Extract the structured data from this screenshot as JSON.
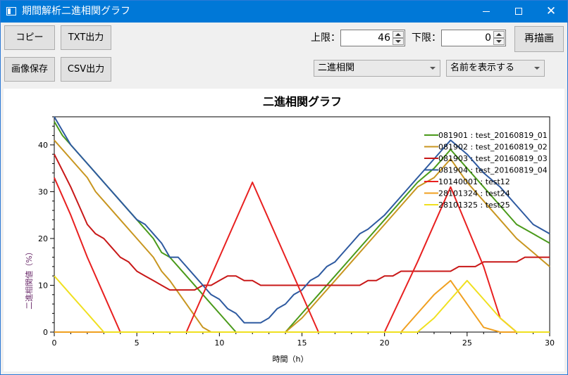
{
  "window": {
    "title": "期間解析二進相関グラフ",
    "minimize_glyph": "",
    "close_glyph": "✕"
  },
  "toolbar": {
    "copy_label": "コピー",
    "txt_label": "TXT出力",
    "image_save_label": "画像保存",
    "csv_label": "CSV出力",
    "upper_label": "上限：",
    "upper_value": "46",
    "lower_label": "下限：",
    "lower_value": "0",
    "redraw_label": "再描画",
    "mode_selected": "二進相関",
    "name_selected": "名前を表示する"
  },
  "chart_data": {
    "type": "line",
    "title": "二進相関グラフ",
    "xlabel": "時間（h）",
    "ylabel": "二進相関値（%）",
    "xlim": [
      0,
      30
    ],
    "ylim": [
      0,
      46
    ],
    "xticks": [
      0,
      5,
      10,
      15,
      20,
      25,
      30
    ],
    "yticks": [
      0,
      10,
      20,
      30,
      40
    ],
    "legend_position": "top-right",
    "series": [
      {
        "name": "081901 : test_20160819_01",
        "color": "#4a9a1a",
        "x": [
          0,
          0.5,
          1,
          2,
          3,
          4,
          5,
          6,
          6.5,
          7,
          8,
          9,
          10,
          11,
          11.5,
          12,
          13,
          14,
          15,
          16,
          17,
          18,
          19,
          20,
          21,
          22,
          23,
          24,
          25,
          26,
          27,
          28,
          29,
          30
        ],
        "y": [
          45,
          42,
          40,
          36,
          32,
          28,
          24,
          20,
          17,
          16,
          12,
          8,
          4,
          0,
          0,
          0,
          0,
          0,
          4,
          8,
          12,
          16,
          20,
          24,
          28,
          32,
          35,
          39,
          35,
          31,
          27,
          23,
          21,
          19
        ]
      },
      {
        "name": "081902 : test_20160819_02",
        "color": "#c89620",
        "x": [
          0,
          1,
          2,
          2.5,
          3,
          4,
          5,
          6,
          6.5,
          7,
          8,
          9,
          9.5,
          10,
          11,
          12,
          13,
          14,
          15,
          16,
          17,
          18,
          19,
          20,
          21,
          22,
          23,
          24,
          25,
          26,
          27,
          28,
          29,
          30
        ],
        "y": [
          41,
          37,
          33,
          30,
          28,
          24,
          20,
          16,
          13,
          11,
          6,
          1,
          0,
          0,
          0,
          0,
          0,
          0,
          3,
          7,
          11,
          15,
          19,
          23,
          27,
          31,
          33,
          37,
          32,
          28,
          24,
          20,
          17,
          14
        ]
      },
      {
        "name": "081903 : test_20160819_03",
        "color": "#c81818",
        "x": [
          0,
          1,
          1.5,
          2,
          2.5,
          3,
          3.5,
          4,
          4.5,
          5,
          5.5,
          6,
          6.5,
          7,
          7.5,
          8,
          8.5,
          9,
          9.5,
          10,
          10.5,
          11,
          11.5,
          12,
          12.5,
          13,
          14,
          15,
          16,
          17,
          18,
          18.5,
          19,
          19.5,
          20,
          20.5,
          21,
          22,
          23,
          24,
          24.5,
          25,
          25.5,
          26,
          27,
          28,
          28.5,
          29,
          30
        ],
        "y": [
          38,
          31,
          27,
          23,
          21,
          20,
          18,
          16,
          15,
          13,
          12,
          11,
          10,
          9,
          9,
          9,
          9,
          10,
          10,
          11,
          12,
          12,
          11,
          11,
          10,
          10,
          10,
          10,
          10,
          10,
          10,
          10,
          11,
          11,
          12,
          12,
          13,
          13,
          13,
          13,
          14,
          14,
          14,
          15,
          15,
          15,
          16,
          16,
          16
        ]
      },
      {
        "name": "081904 : test_20160819_04",
        "color": "#2e5aa0",
        "x": [
          0,
          0.5,
          1,
          2,
          3,
          4,
          4.5,
          5,
          5.5,
          6,
          6.5,
          7,
          7.5,
          8,
          8.5,
          9,
          9.5,
          10,
          10.5,
          11,
          11.5,
          12,
          12.5,
          13,
          13.5,
          14,
          14.5,
          15,
          15.5,
          16,
          16.5,
          17,
          17.5,
          18,
          18.5,
          19,
          20,
          21,
          22,
          23,
          24,
          25,
          26,
          27,
          28,
          29,
          30
        ],
        "y": [
          46,
          43,
          40,
          36,
          32,
          28,
          26,
          24,
          23,
          21,
          19,
          16,
          16,
          14,
          12,
          10,
          8,
          7,
          5,
          4,
          2,
          2,
          2,
          3,
          5,
          6,
          8,
          9,
          11,
          12,
          14,
          15,
          17,
          19,
          21,
          22,
          25,
          29,
          33,
          37,
          41,
          38,
          34,
          31,
          27,
          23,
          21
        ]
      },
      {
        "name": "10140001 : test12",
        "color": "#e82020",
        "x": [
          0,
          1,
          2,
          3,
          4,
          5,
          6,
          7,
          8,
          10,
          12,
          14,
          16,
          17,
          18,
          19,
          20,
          22,
          24,
          26,
          27,
          28,
          29,
          30
        ],
        "y": [
          33,
          25,
          16,
          8,
          0,
          0,
          0,
          0,
          0,
          16,
          32,
          16,
          0,
          0,
          0,
          0,
          0,
          15,
          31,
          14,
          3,
          0,
          0,
          0
        ],
        "x_note": ""
      },
      {
        "name": "28101324 : test24",
        "color": "#f0a020",
        "x": [
          0,
          20,
          21,
          22,
          23,
          24,
          25,
          26,
          27,
          30
        ],
        "y": [
          0,
          0,
          0,
          4,
          8,
          11,
          6,
          1,
          0,
          0
        ]
      },
      {
        "name": "28101325 : test25",
        "color": "#f0e020",
        "x": [
          0,
          1,
          2,
          3,
          4,
          22,
          23,
          24,
          25,
          26,
          27,
          28,
          30
        ],
        "y": [
          12,
          8,
          4,
          0,
          0,
          0,
          3,
          7,
          11,
          7,
          3,
          0,
          0
        ]
      }
    ]
  }
}
